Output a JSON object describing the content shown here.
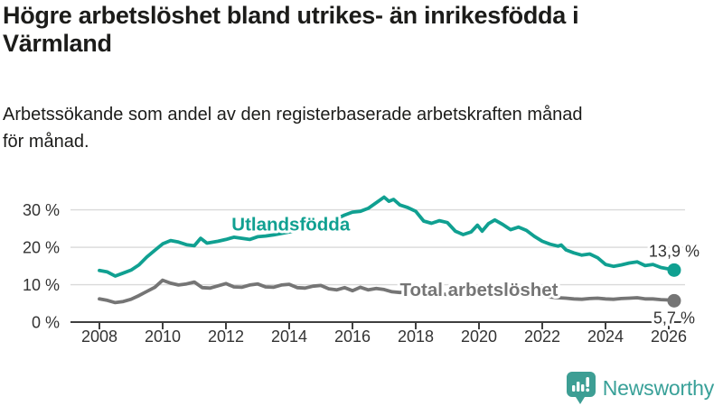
{
  "title": "Högre arbetslöshet bland utrikes- än inrikesfödda i\nVärmland",
  "subtitle": "Arbetssökande som andel av den registerbaserade arbetskraften månad\nför månad.",
  "colors": {
    "accent_teal": "#10a091",
    "series_gray": "#757575",
    "text": "#1c1c1a",
    "axis": "#3f3f3f",
    "grid": "#d9d9d9",
    "logo_teal": "#38a098"
  },
  "logo": {
    "text": "Newsworthy",
    "icon": "speech-bubble-bar-chart-exclamation"
  },
  "chart_data": {
    "type": "line",
    "title": "Högre arbetslöshet bland utrikes- än inrikesfödda i Värmland",
    "subtitle": "Arbetssökande som andel av den registerbaserade arbetskraften månad för månad.",
    "xlabel": "",
    "ylabel": "",
    "grid": true,
    "xlim": [
      2007.1,
      2026.6
    ],
    "ylim": [
      0,
      35
    ],
    "x_axis": {
      "ticks": [
        {
          "v": 2008,
          "label": "2008"
        },
        {
          "v": 2010,
          "label": "2010"
        },
        {
          "v": 2012,
          "label": "2012"
        },
        {
          "v": 2014,
          "label": "2014"
        },
        {
          "v": 2016,
          "label": "2016"
        },
        {
          "v": 2018,
          "label": "2018"
        },
        {
          "v": 2020,
          "label": "2020"
        },
        {
          "v": 2022,
          "label": "2022"
        },
        {
          "v": 2024,
          "label": "2024"
        },
        {
          "v": 2026,
          "label": "2026"
        }
      ]
    },
    "y_axis": {
      "ticks": [
        {
          "v": 0,
          "label": "0 %"
        },
        {
          "v": 10,
          "label": "10 %"
        },
        {
          "v": 20,
          "label": "20 %"
        },
        {
          "v": 30,
          "label": "30 %"
        }
      ]
    },
    "series": [
      {
        "name": "Utlandsfödda",
        "slug": "utlandsfodda",
        "color": "#10a091",
        "end_label": "13,9 %",
        "end_value": 13.9,
        "end_label_side": "above",
        "label_pos": {
          "x": 2014.05,
          "y": 26.2
        },
        "points": [
          [
            2008,
            13.8
          ],
          [
            2008.25,
            13.4
          ],
          [
            2008.5,
            12.3
          ],
          [
            2008.75,
            13.1
          ],
          [
            2009,
            13.9
          ],
          [
            2009.25,
            15.3
          ],
          [
            2009.5,
            17.4
          ],
          [
            2009.75,
            19.2
          ],
          [
            2010,
            20.9
          ],
          [
            2010.25,
            21.8
          ],
          [
            2010.5,
            21.4
          ],
          [
            2010.75,
            20.7
          ],
          [
            2011,
            20.4
          ],
          [
            2011.2,
            22.4
          ],
          [
            2011.4,
            21.1
          ],
          [
            2011.75,
            21.6
          ],
          [
            2012,
            22.1
          ],
          [
            2012.25,
            22.7
          ],
          [
            2012.5,
            22.4
          ],
          [
            2012.75,
            22.1
          ],
          [
            2013,
            22.8
          ],
          [
            2013.25,
            23.0
          ],
          [
            2013.5,
            23.3
          ],
          [
            2013.75,
            23.7
          ],
          [
            2014,
            24.1
          ],
          [
            2014.25,
            24.6
          ],
          [
            2014.5,
            25.0
          ],
          [
            2014.75,
            25.6
          ],
          [
            2015,
            26.2
          ],
          [
            2015.25,
            26.9
          ],
          [
            2015.5,
            27.6
          ],
          [
            2015.75,
            28.6
          ],
          [
            2016,
            29.4
          ],
          [
            2016.25,
            29.6
          ],
          [
            2016.5,
            30.4
          ],
          [
            2016.75,
            31.9
          ],
          [
            2017,
            33.4
          ],
          [
            2017.15,
            32.3
          ],
          [
            2017.3,
            32.8
          ],
          [
            2017.5,
            31.3
          ],
          [
            2017.75,
            30.6
          ],
          [
            2018,
            29.6
          ],
          [
            2018.25,
            27.0
          ],
          [
            2018.5,
            26.4
          ],
          [
            2018.75,
            27.1
          ],
          [
            2019,
            26.6
          ],
          [
            2019.25,
            24.3
          ],
          [
            2019.5,
            23.4
          ],
          [
            2019.75,
            24.1
          ],
          [
            2019.95,
            25.9
          ],
          [
            2020.1,
            24.3
          ],
          [
            2020.3,
            26.3
          ],
          [
            2020.5,
            27.3
          ],
          [
            2020.75,
            26.1
          ],
          [
            2021,
            24.7
          ],
          [
            2021.25,
            25.4
          ],
          [
            2021.5,
            24.5
          ],
          [
            2021.75,
            22.9
          ],
          [
            2022,
            21.6
          ],
          [
            2022.25,
            20.8
          ],
          [
            2022.5,
            20.3
          ],
          [
            2022.6,
            20.6
          ],
          [
            2022.75,
            19.3
          ],
          [
            2023,
            18.5
          ],
          [
            2023.25,
            17.9
          ],
          [
            2023.5,
            18.2
          ],
          [
            2023.75,
            17.2
          ],
          [
            2024,
            15.4
          ],
          [
            2024.25,
            14.9
          ],
          [
            2024.5,
            15.3
          ],
          [
            2024.75,
            15.8
          ],
          [
            2025,
            16.1
          ],
          [
            2025.25,
            15.1
          ],
          [
            2025.5,
            15.4
          ],
          [
            2025.75,
            14.6
          ],
          [
            2026,
            14.2
          ],
          [
            2026.17,
            13.9
          ]
        ]
      },
      {
        "name": "Total arbetslöshet",
        "slug": "total-arbetsloshet",
        "color": "#757575",
        "end_label": "5,7 %",
        "end_value": 5.7,
        "end_label_side": "below",
        "label_pos": {
          "x": 2020.0,
          "y": 8.7
        },
        "points": [
          [
            2008,
            6.2
          ],
          [
            2008.25,
            5.8
          ],
          [
            2008.5,
            5.2
          ],
          [
            2008.75,
            5.5
          ],
          [
            2009,
            6.1
          ],
          [
            2009.25,
            7.1
          ],
          [
            2009.5,
            8.2
          ],
          [
            2009.75,
            9.3
          ],
          [
            2010,
            11.2
          ],
          [
            2010.25,
            10.4
          ],
          [
            2010.5,
            9.9
          ],
          [
            2010.75,
            10.2
          ],
          [
            2011,
            10.7
          ],
          [
            2011.25,
            9.2
          ],
          [
            2011.5,
            9.1
          ],
          [
            2011.75,
            9.7
          ],
          [
            2012,
            10.3
          ],
          [
            2012.25,
            9.4
          ],
          [
            2012.5,
            9.3
          ],
          [
            2012.75,
            9.9
          ],
          [
            2013,
            10.2
          ],
          [
            2013.25,
            9.4
          ],
          [
            2013.5,
            9.3
          ],
          [
            2013.75,
            9.9
          ],
          [
            2014,
            10.1
          ],
          [
            2014.25,
            9.2
          ],
          [
            2014.5,
            9.1
          ],
          [
            2014.75,
            9.6
          ],
          [
            2015,
            9.8
          ],
          [
            2015.25,
            8.9
          ],
          [
            2015.5,
            8.6
          ],
          [
            2015.75,
            9.2
          ],
          [
            2016,
            8.4
          ],
          [
            2016.25,
            9.3
          ],
          [
            2016.5,
            8.6
          ],
          [
            2016.75,
            9.0
          ],
          [
            2017,
            8.7
          ],
          [
            2017.25,
            8.1
          ],
          [
            2017.5,
            7.9
          ],
          [
            2017.75,
            8.2
          ],
          [
            2018,
            8.0
          ],
          [
            2018.25,
            7.4
          ],
          [
            2018.5,
            7.2
          ],
          [
            2018.75,
            7.5
          ],
          [
            2019,
            7.4
          ],
          [
            2019.25,
            7.0
          ],
          [
            2019.5,
            7.1
          ],
          [
            2019.75,
            7.3
          ],
          [
            2020,
            7.6
          ],
          [
            2020.25,
            8.8
          ],
          [
            2020.5,
            9.4
          ],
          [
            2020.75,
            8.9
          ],
          [
            2021,
            8.4
          ],
          [
            2021.25,
            8.0
          ],
          [
            2021.5,
            7.5
          ],
          [
            2021.75,
            7.2
          ],
          [
            2022,
            7.0
          ],
          [
            2022.25,
            6.7
          ],
          [
            2022.5,
            6.5
          ],
          [
            2022.75,
            6.4
          ],
          [
            2023,
            6.2
          ],
          [
            2023.25,
            6.1
          ],
          [
            2023.5,
            6.3
          ],
          [
            2023.75,
            6.4
          ],
          [
            2024,
            6.2
          ],
          [
            2024.25,
            6.1
          ],
          [
            2024.5,
            6.3
          ],
          [
            2024.75,
            6.4
          ],
          [
            2025,
            6.5
          ],
          [
            2025.25,
            6.2
          ],
          [
            2025.5,
            6.2
          ],
          [
            2025.75,
            6.0
          ],
          [
            2026,
            5.9
          ],
          [
            2026.17,
            5.7
          ]
        ]
      }
    ]
  }
}
